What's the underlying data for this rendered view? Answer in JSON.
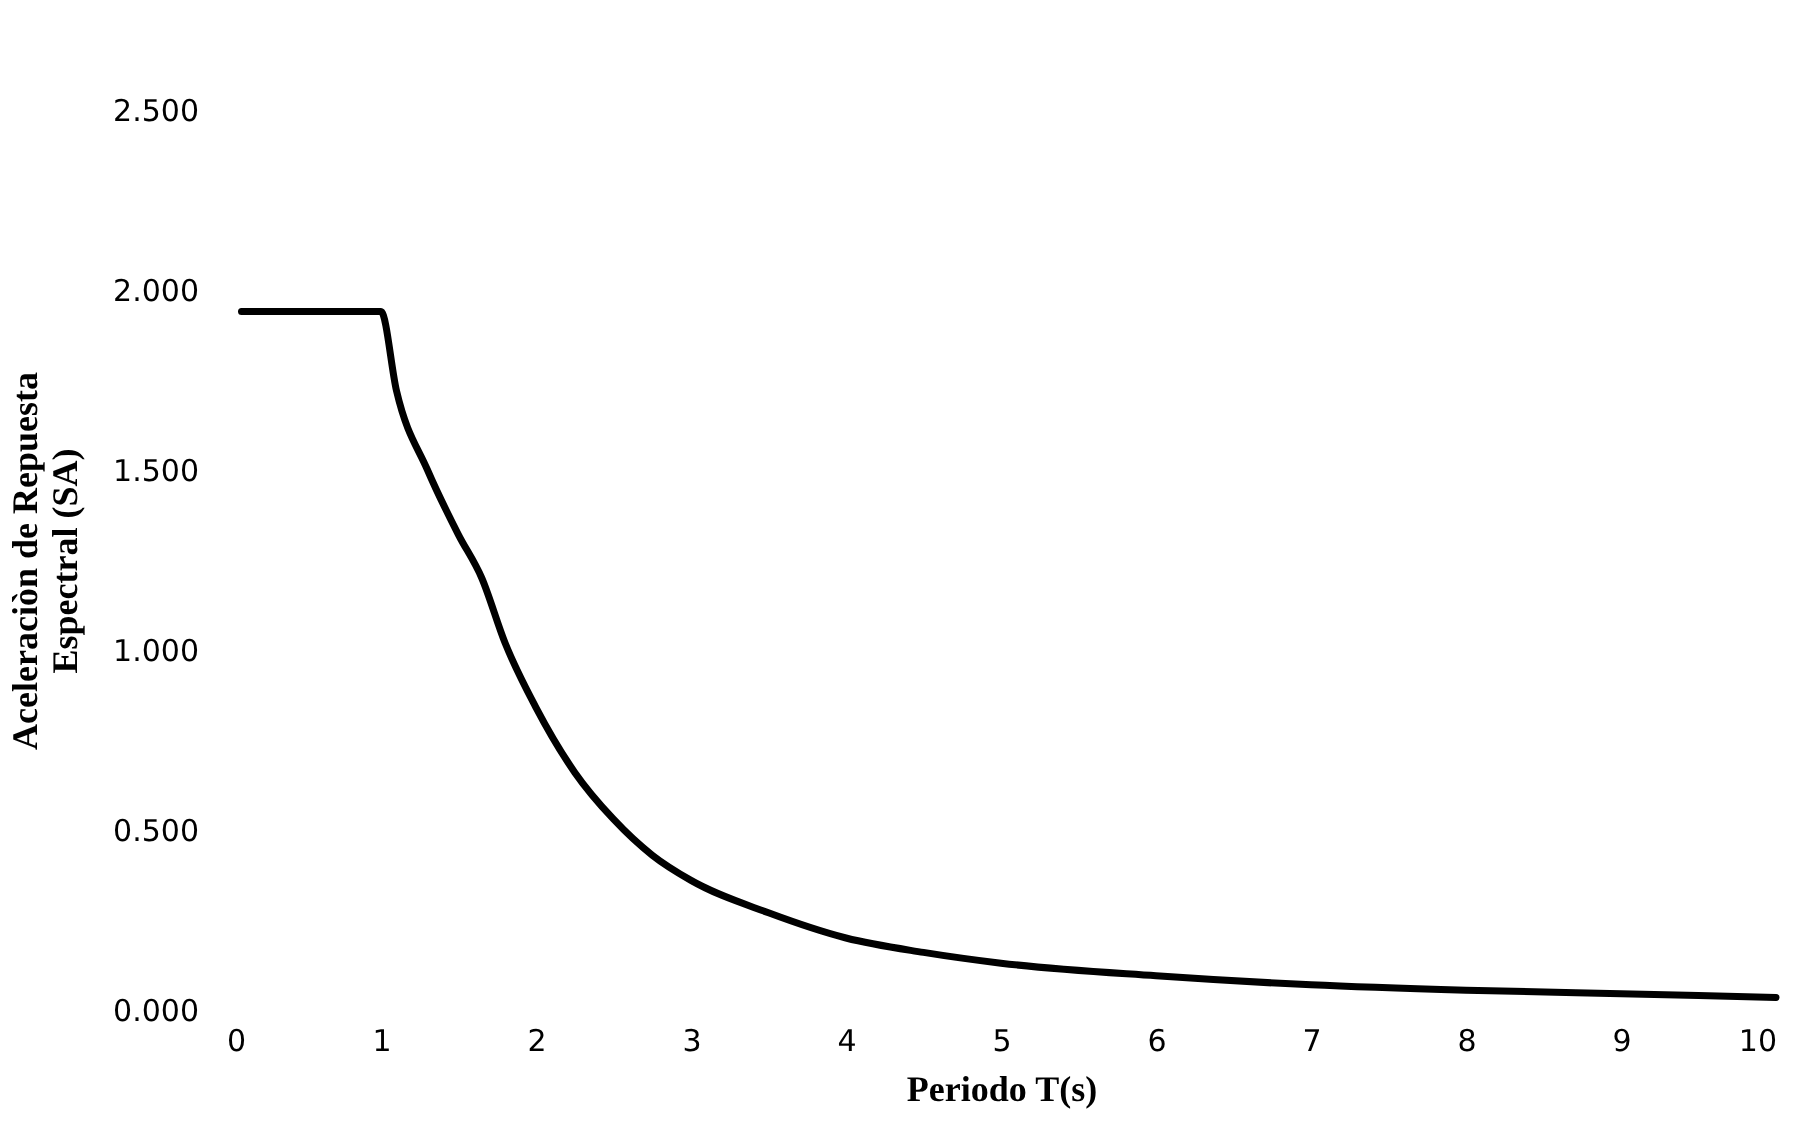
{
  "chart_data": {
    "type": "line",
    "xlabel": "Periodo T(s)",
    "ylabel": "Aceleraciòn de Repuesta Espectral (SA)",
    "x": [
      0.1,
      0.5,
      1.0,
      1.1,
      1.3,
      1.5,
      1.65,
      1.8,
      2.0,
      2.25,
      2.5,
      2.75,
      3.0,
      3.5,
      4.0,
      4.5,
      5.0,
      6.0,
      7.0,
      8.0,
      9.0,
      10.0
    ],
    "series": [
      {
        "color": "#000000",
        "values": [
          1.94,
          1.94,
          1.94,
          1.72,
          1.5,
          1.32,
          1.2,
          1.02,
          0.84,
          0.66,
          0.53,
          0.43,
          0.36,
          0.27,
          0.2,
          0.16,
          0.13,
          0.095,
          0.07,
          0.055,
          0.045,
          0.035
        ]
      }
    ],
    "xlim": [
      0,
      10
    ],
    "xticks": [
      0,
      1,
      2,
      3,
      4,
      5,
      6,
      7,
      8,
      9,
      10
    ],
    "ylim": [
      0,
      2.5
    ],
    "yticks": [
      {
        "value": 0,
        "label": "0.000"
      },
      {
        "value": 0.5,
        "label": "0.500"
      },
      {
        "value": 1,
        "label": "1.000"
      },
      {
        "value": 1.5,
        "label": "1.500"
      },
      {
        "value": 2,
        "label": "2.000"
      },
      {
        "value": 2.5,
        "label": "2.500"
      }
    ],
    "grid": false,
    "marker": "none",
    "line_style": "solid"
  }
}
